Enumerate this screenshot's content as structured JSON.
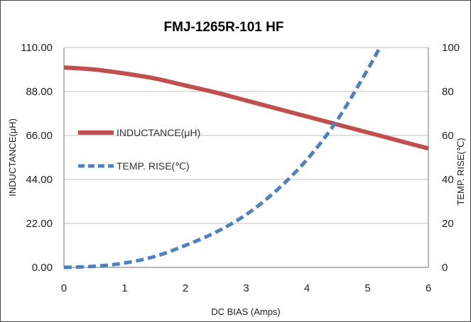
{
  "chart_data": {
    "type": "line",
    "title": "FMJ-1265R-101 HF",
    "xlabel": "DC BIAS  (Amps)",
    "ylabel_left": "INDUCTANCE(μH)",
    "ylabel_right": "TEMP. RISE(℃)",
    "xlim": [
      0,
      6
    ],
    "ylim_left": [
      0,
      110
    ],
    "ylim_right": [
      0,
      100
    ],
    "x_ticks": [
      "0",
      "1",
      "2",
      "3",
      "4",
      "5",
      "6"
    ],
    "y_ticks_left": [
      "0.00",
      "22.00",
      "44.00",
      "66.00",
      "88.00",
      "110.00"
    ],
    "y_ticks_right": [
      "0",
      "20",
      "40",
      "60",
      "80",
      "100"
    ],
    "grid": "horizontal",
    "legend_position": "middle-left",
    "series": [
      {
        "name": "INDUCTANCE(μH)",
        "axis": "left",
        "style": "solid",
        "color": "#c0504d",
        "x": [
          0,
          0.5,
          1,
          1.5,
          2,
          2.5,
          3,
          3.5,
          4,
          4.5,
          5,
          5.5,
          6
        ],
        "y": [
          100,
          99,
          97,
          94.5,
          91,
          87.5,
          83.5,
          79.5,
          75.5,
          71.5,
          67.5,
          63.5,
          59.5
        ]
      },
      {
        "name": "TEMP. RISE(℃)",
        "axis": "right",
        "style": "dashed",
        "color": "#4f81bd",
        "x": [
          0,
          0.5,
          1,
          1.5,
          2,
          2.5,
          3,
          3.5,
          4,
          4.5,
          5,
          5.2
        ],
        "y": [
          0,
          0.5,
          2,
          5,
          10,
          16,
          24,
          35,
          49,
          67,
          90,
          100
        ]
      }
    ]
  }
}
